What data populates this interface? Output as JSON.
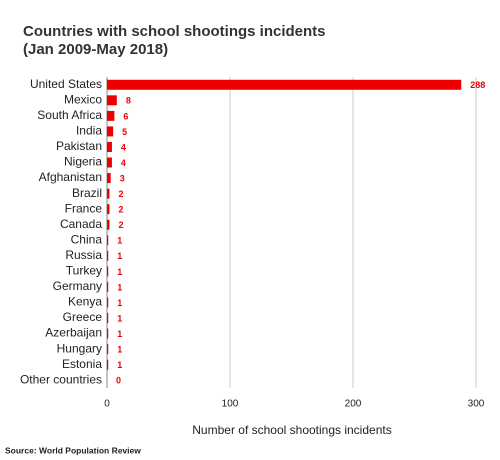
{
  "chart_data": {
    "type": "bar",
    "orientation": "horizontal",
    "title": [
      "Countries with school shootings incidents",
      "(Jan 2009-May 2018)"
    ],
    "categories": [
      "United States",
      "Mexico",
      "South Africa",
      "India",
      "Pakistan",
      "Nigeria",
      "Afghanistan",
      "Brazil",
      "France",
      "Canada",
      "China",
      "Russia",
      "Turkey",
      "Germany",
      "Kenya",
      "Greece",
      "Azerbaijan",
      "Hungary",
      "Estonia",
      "Other countries"
    ],
    "values": [
      288,
      8,
      6,
      5,
      4,
      4,
      3,
      2,
      2,
      2,
      1,
      1,
      1,
      1,
      1,
      1,
      1,
      1,
      1,
      0
    ],
    "color": "#ee0000",
    "xlim": [
      0,
      300
    ],
    "xticks": [
      0,
      100,
      200,
      300
    ],
    "grid": true,
    "xlabel": "Number of school shootings incidents",
    "source": "Source: World Population Review"
  }
}
